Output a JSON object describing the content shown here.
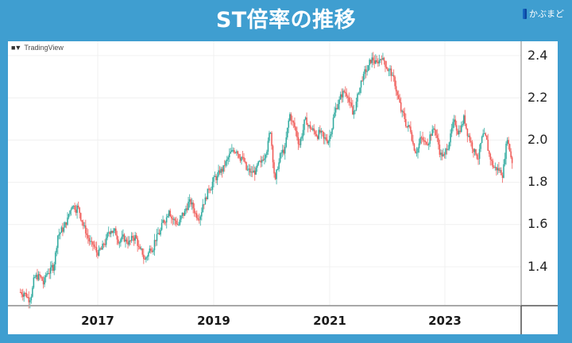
{
  "header": {
    "title": "ST倍率の推移",
    "brand": "かぶまど"
  },
  "chart_watermark": "TradingView",
  "colors": {
    "background": "#3f9ed0",
    "up": "#26a69a",
    "down": "#ef5350",
    "grid": "#f0f0f0",
    "axis_line": "#888888"
  },
  "axes": {
    "y_ticks": [
      "2.4",
      "2.2",
      "2.0",
      "1.8",
      "1.6",
      "1.4"
    ],
    "x_ticks": [
      "2017",
      "2019",
      "2021",
      "2023"
    ]
  },
  "chart_data": {
    "type": "candlestick",
    "title": "ST倍率の推移",
    "xlabel": "",
    "ylabel": "",
    "x_ticks": [
      "2017",
      "2019",
      "2021",
      "2023"
    ],
    "y_ticks": [
      1.4,
      1.6,
      1.8,
      2.0,
      2.2,
      2.4
    ],
    "ylim": [
      1.22,
      2.47
    ],
    "xlim": [
      "2015-09",
      "2024-03"
    ],
    "grid": true,
    "legend": "none",
    "series": [
      {
        "name": "ST倍率 (approx. monthly close)",
        "x": [
          "2015-09",
          "2015-10",
          "2015-11",
          "2015-12",
          "2016-01",
          "2016-02",
          "2016-03",
          "2016-04",
          "2016-05",
          "2016-06",
          "2016-07",
          "2016-08",
          "2016-09",
          "2016-10",
          "2016-11",
          "2016-12",
          "2017-01",
          "2017-02",
          "2017-03",
          "2017-04",
          "2017-05",
          "2017-06",
          "2017-07",
          "2017-08",
          "2017-09",
          "2017-10",
          "2017-11",
          "2017-12",
          "2018-01",
          "2018-02",
          "2018-03",
          "2018-04",
          "2018-05",
          "2018-06",
          "2018-07",
          "2018-08",
          "2018-09",
          "2018-10",
          "2018-11",
          "2018-12",
          "2019-01",
          "2019-02",
          "2019-03",
          "2019-04",
          "2019-05",
          "2019-06",
          "2019-07",
          "2019-08",
          "2019-09",
          "2019-10",
          "2019-11",
          "2019-12",
          "2020-01",
          "2020-02",
          "2020-03",
          "2020-04",
          "2020-05",
          "2020-06",
          "2020-07",
          "2020-08",
          "2020-09",
          "2020-10",
          "2020-11",
          "2020-12",
          "2021-01",
          "2021-02",
          "2021-03",
          "2021-04",
          "2021-05",
          "2021-06",
          "2021-07",
          "2021-08",
          "2021-09",
          "2021-10",
          "2021-11",
          "2021-12",
          "2022-01",
          "2022-02",
          "2022-03",
          "2022-04",
          "2022-05",
          "2022-06",
          "2022-07",
          "2022-08",
          "2022-09",
          "2022-10",
          "2022-11",
          "2022-12",
          "2023-01",
          "2023-02",
          "2023-03",
          "2023-04",
          "2023-05",
          "2023-06",
          "2023-07",
          "2023-08",
          "2023-09",
          "2023-10",
          "2023-11",
          "2023-12",
          "2024-01",
          "2024-02"
        ],
        "values": [
          1.28,
          1.25,
          1.33,
          1.35,
          1.32,
          1.38,
          1.4,
          1.55,
          1.58,
          1.62,
          1.7,
          1.68,
          1.62,
          1.55,
          1.5,
          1.47,
          1.48,
          1.52,
          1.58,
          1.56,
          1.53,
          1.52,
          1.52,
          1.54,
          1.47,
          1.43,
          1.48,
          1.52,
          1.56,
          1.62,
          1.68,
          1.62,
          1.6,
          1.65,
          1.7,
          1.68,
          1.64,
          1.7,
          1.75,
          1.8,
          1.82,
          1.86,
          1.9,
          1.94,
          1.96,
          1.92,
          1.86,
          1.84,
          1.85,
          1.88,
          1.95,
          2.05,
          1.8,
          1.92,
          1.95,
          2.12,
          2.06,
          1.98,
          2.08,
          2.06,
          2.04,
          2.03,
          2.0,
          2.0,
          2.1,
          2.18,
          2.22,
          2.22,
          2.12,
          2.2,
          2.3,
          2.33,
          2.38,
          2.36,
          2.4,
          2.35,
          2.32,
          2.24,
          2.14,
          2.08,
          2.05,
          1.95,
          2.0,
          1.98,
          2.02,
          2.06,
          1.95,
          1.92,
          2.0,
          2.08,
          2.04,
          2.1,
          2.02,
          1.96,
          1.92,
          2.02,
          1.96,
          1.88,
          1.86,
          1.84,
          2.02,
          1.9
        ]
      }
    ]
  }
}
